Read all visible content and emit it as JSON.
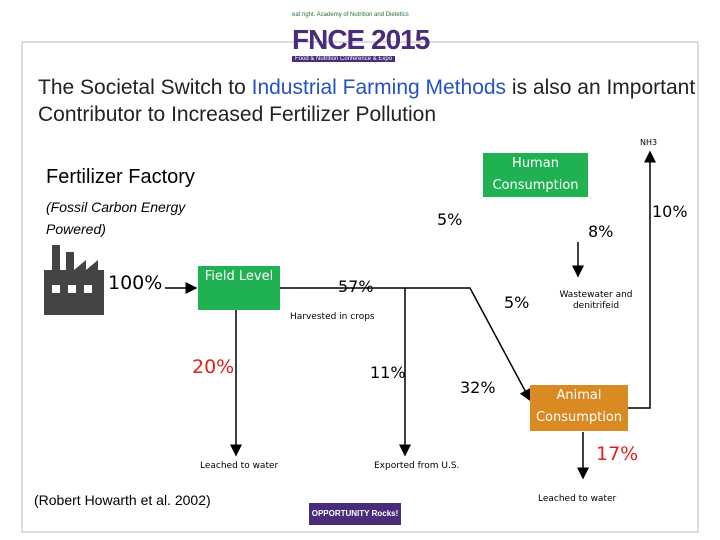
{
  "header": {
    "logo": {
      "academy": "eat right. Academy of Nutrition and Dietetics",
      "name": "FNCE 2015",
      "subtitle": "Food & Nutrition Conference & Expo"
    },
    "title": {
      "before": "The Societal Switch to",
      "highlight": "Industrial Farming Methods",
      "after": "is also an Important Contributor to Increased Fertilizer Pollution"
    }
  },
  "factory": {
    "title": "Fertilizer Factory",
    "subtitle": "(Fossil Carbon Energy Powered)"
  },
  "nodes": {
    "field_level": "Field Level",
    "human_consumption": "Human Consumption",
    "animal_consumption": "Animal Consumption"
  },
  "flows": {
    "factory": "100%",
    "human_to_air": "5%",
    "human_to_wastewater": "8%",
    "animal_to_air": "10%",
    "harvested": "57%",
    "crops_to_human": "5%",
    "field_leached": "20%",
    "exported": "11%",
    "crops_to_animal": "32%",
    "animal_leached": "17%"
  },
  "labels": {
    "nh3": "NH3",
    "harvested": "Harvested in crops",
    "wastewater": "Wastewater and denitrifeid",
    "leached_field": "Leached to water",
    "exported": "Exported from U.S.",
    "leached_animal": "Leached to water"
  },
  "footer": {
    "citation": "(Robert Howarth et al. 2002)",
    "logo": "OPPORTUNITY Rocks!"
  }
}
